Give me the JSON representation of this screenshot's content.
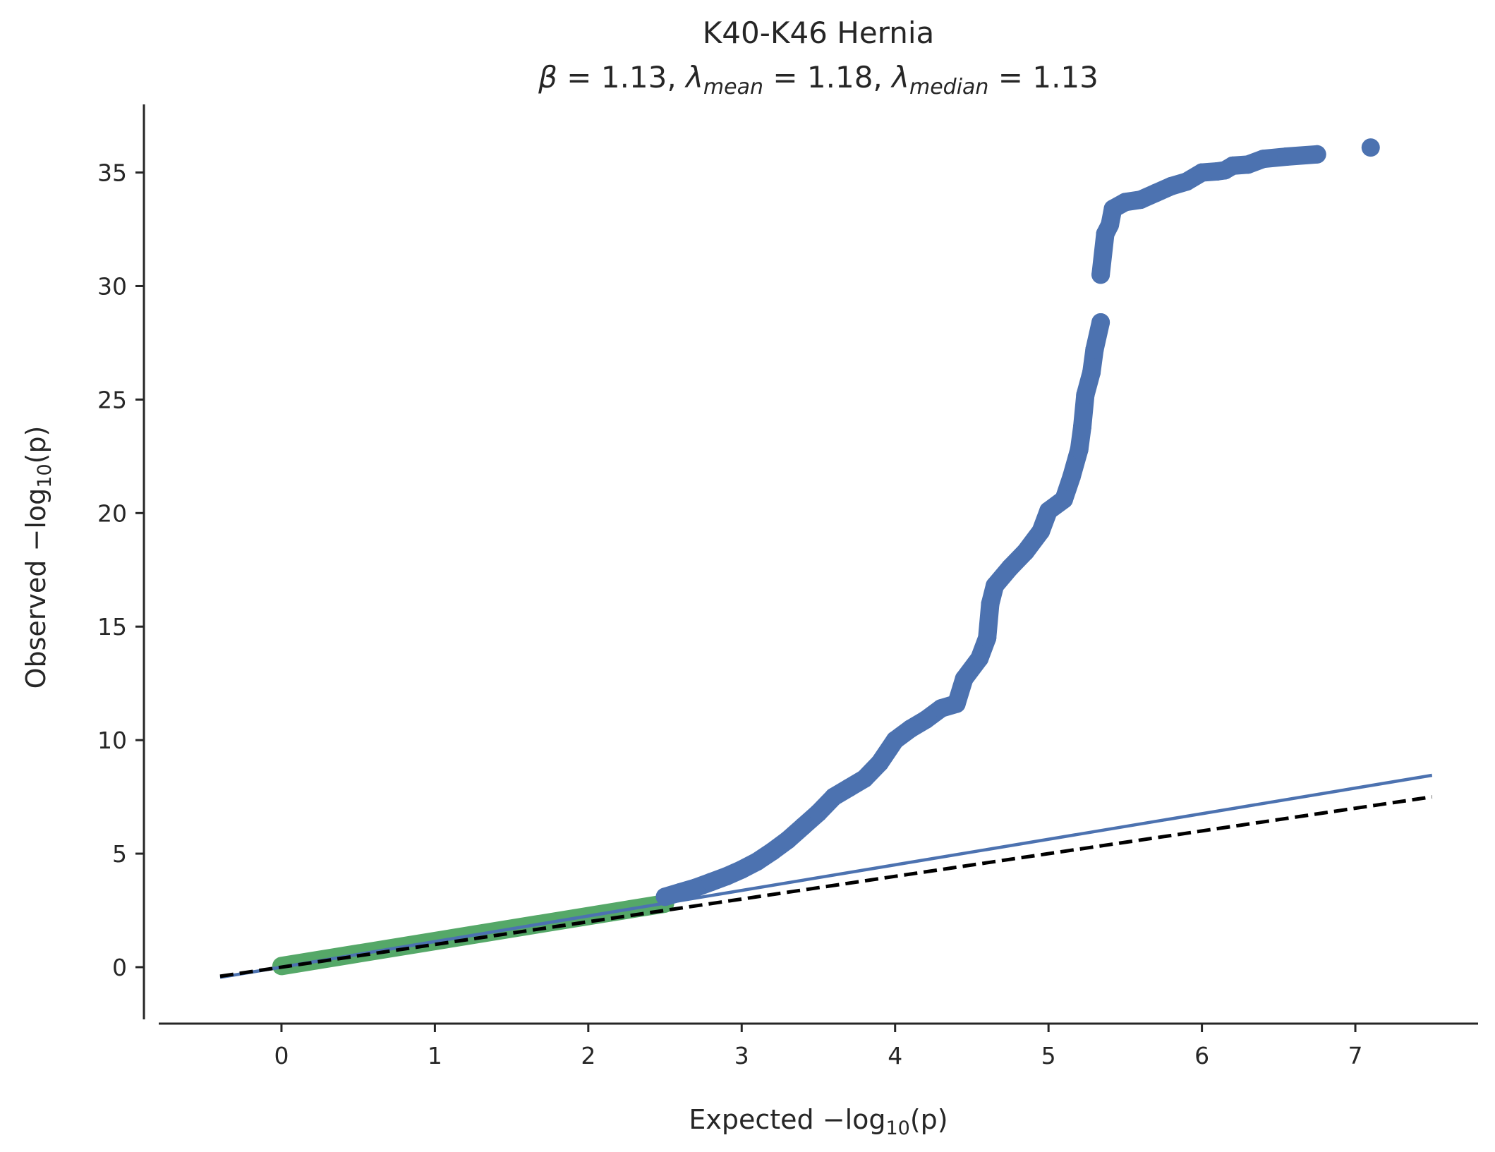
{
  "chart_data": {
    "type": "scatter",
    "title": "K40-K46 Hernia",
    "subtitle": {
      "beta_symbol": "β",
      "lambda_symbol": "λ",
      "eq": " = ",
      "sep": ", ",
      "beta_value": "1.13",
      "lambda_mean_sub": "mean",
      "lambda_mean_value": "1.18",
      "lambda_median_sub": "median",
      "lambda_median_value": "1.13"
    },
    "xlabel": {
      "prefix": "Expected −log",
      "sub": "10",
      "suffix": "(p)"
    },
    "ylabel": {
      "prefix": "Observed −log",
      "sub": "10",
      "suffix": "(p)"
    },
    "xlim": [
      -0.8,
      7.8
    ],
    "ylim": [
      -2.3,
      38.0
    ],
    "xticks": [
      0,
      1,
      2,
      3,
      4,
      5,
      6,
      7
    ],
    "yticks": [
      0,
      5,
      10,
      15,
      20,
      25,
      30,
      35
    ],
    "grid": false,
    "colors": {
      "observed": "#4c72b0",
      "null_range": "#55a868",
      "fit_line": "#4c72b0",
      "identity_line": "#000000",
      "axis": "#262626"
    },
    "observed_points": [
      [
        2.5,
        3.1
      ],
      [
        2.6,
        3.3
      ],
      [
        2.7,
        3.5
      ],
      [
        2.8,
        3.75
      ],
      [
        2.9,
        4.0
      ],
      [
        3.0,
        4.3
      ],
      [
        3.1,
        4.65
      ],
      [
        3.2,
        5.1
      ],
      [
        3.3,
        5.6
      ],
      [
        3.4,
        6.2
      ],
      [
        3.5,
        6.8
      ],
      [
        3.6,
        7.5
      ],
      [
        3.7,
        7.9
      ],
      [
        3.8,
        8.3
      ],
      [
        3.9,
        9.0
      ],
      [
        4.0,
        10.0
      ],
      [
        4.1,
        10.5
      ],
      [
        4.2,
        10.9
      ],
      [
        4.3,
        11.4
      ],
      [
        4.4,
        11.6
      ],
      [
        4.45,
        12.7
      ],
      [
        4.55,
        13.6
      ],
      [
        4.6,
        14.5
      ],
      [
        4.62,
        16.0
      ],
      [
        4.65,
        16.8
      ],
      [
        4.75,
        17.6
      ],
      [
        4.85,
        18.3
      ],
      [
        4.95,
        19.2
      ],
      [
        5.0,
        20.1
      ],
      [
        5.1,
        20.6
      ],
      [
        5.15,
        21.6
      ],
      [
        5.2,
        22.8
      ],
      [
        5.22,
        23.8
      ],
      [
        5.24,
        25.2
      ],
      [
        5.28,
        26.2
      ],
      [
        5.3,
        27.2
      ],
      [
        5.34,
        28.4
      ],
      [
        5.34,
        30.5
      ],
      [
        5.37,
        32.3
      ],
      [
        5.4,
        32.7
      ],
      [
        5.42,
        33.4
      ],
      [
        5.5,
        33.7
      ],
      [
        5.6,
        33.8
      ],
      [
        5.7,
        34.1
      ],
      [
        5.8,
        34.4
      ],
      [
        5.9,
        34.6
      ],
      [
        6.0,
        35.0
      ],
      [
        6.1,
        35.05
      ],
      [
        6.15,
        35.1
      ],
      [
        6.2,
        35.3
      ],
      [
        6.3,
        35.35
      ],
      [
        6.4,
        35.6
      ],
      [
        6.55,
        35.7
      ],
      [
        6.75,
        35.8
      ],
      [
        7.1,
        36.1
      ]
    ],
    "null_range": {
      "x_start": 0.0,
      "x_end": 2.5,
      "y_start": 0.05,
      "y_end": 2.8
    },
    "fit_line": {
      "x": [
        -0.4,
        7.5
      ],
      "y": [
        -0.45,
        8.45
      ]
    },
    "identity_line": {
      "x": [
        -0.4,
        7.5
      ],
      "y": [
        -0.4,
        7.5
      ]
    }
  }
}
